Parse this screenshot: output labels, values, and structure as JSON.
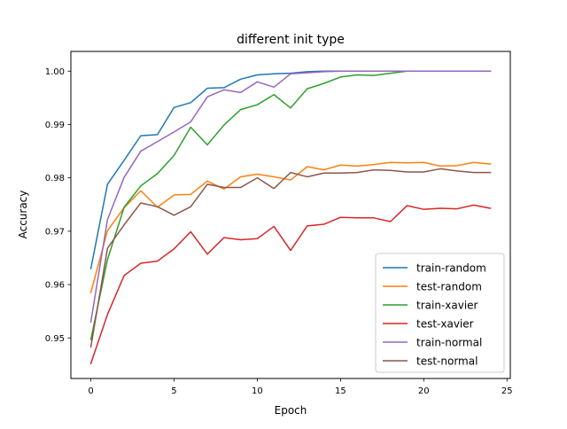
{
  "chart_data": {
    "type": "line",
    "title": "different init type",
    "xlabel": "Epoch",
    "ylabel": "Accuracy",
    "xlim": [
      -1.2,
      25.2
    ],
    "ylim": [
      0.9424,
      1.0037
    ],
    "xticks": [
      0,
      5,
      10,
      15,
      20,
      25
    ],
    "yticks": [
      0.95,
      0.96,
      0.97,
      0.98,
      0.99,
      1.0
    ],
    "ytick_labels": [
      "0.95",
      "0.96",
      "0.97",
      "0.98",
      "0.99",
      "1.00"
    ],
    "grid": false,
    "legend_position": "lower-right",
    "x": [
      0,
      1,
      2,
      3,
      4,
      5,
      6,
      7,
      8,
      9,
      10,
      11,
      12,
      13,
      14,
      15,
      16,
      17,
      18,
      19,
      20,
      21,
      22,
      23,
      24
    ],
    "series": [
      {
        "name": "train-random",
        "color": "#1f77b4",
        "values": [
          0.963,
          0.9788,
          0.9833,
          0.9879,
          0.9881,
          0.9932,
          0.9941,
          0.9968,
          0.9969,
          0.9985,
          0.9993,
          0.9995,
          0.9996,
          0.9999,
          1.0,
          1.0,
          1.0,
          1.0,
          1.0,
          1.0,
          1.0,
          1.0,
          1.0,
          1.0,
          1.0
        ]
      },
      {
        "name": "test-random",
        "color": "#ff7f0e",
        "values": [
          0.9585,
          0.9701,
          0.9744,
          0.9776,
          0.9745,
          0.9768,
          0.9769,
          0.9794,
          0.9779,
          0.9802,
          0.9807,
          0.9802,
          0.9796,
          0.9821,
          0.9815,
          0.9824,
          0.9822,
          0.9825,
          0.9829,
          0.9828,
          0.9829,
          0.9822,
          0.9823,
          0.9829,
          0.9826
        ]
      },
      {
        "name": "train-xavier",
        "color": "#2ca02c",
        "values": [
          0.9497,
          0.9647,
          0.9745,
          0.9785,
          0.9808,
          0.9842,
          0.9895,
          0.9862,
          0.9899,
          0.9928,
          0.9937,
          0.9956,
          0.9931,
          0.9967,
          0.9977,
          0.9989,
          0.9993,
          0.9992,
          0.9996,
          1.0,
          1.0,
          1.0,
          1.0,
          1.0,
          1.0
        ]
      },
      {
        "name": "test-xavier",
        "color": "#d62728",
        "values": [
          0.9452,
          0.9544,
          0.9617,
          0.964,
          0.9644,
          0.9667,
          0.9699,
          0.9657,
          0.9688,
          0.9684,
          0.9686,
          0.9709,
          0.9664,
          0.971,
          0.9713,
          0.9726,
          0.9725,
          0.9725,
          0.9718,
          0.9748,
          0.9741,
          0.9743,
          0.9742,
          0.9749,
          0.9743
        ]
      },
      {
        "name": "train-normal",
        "color": "#9467bd",
        "values": [
          0.953,
          0.9722,
          0.9801,
          0.985,
          0.9868,
          0.9886,
          0.9905,
          0.9952,
          0.9965,
          0.996,
          0.998,
          0.997,
          0.9995,
          0.9997,
          0.9999,
          1.0,
          1.0,
          1.0,
          1.0,
          1.0,
          1.0,
          1.0,
          1.0,
          1.0,
          1.0
        ]
      },
      {
        "name": "test-normal",
        "color": "#8c564b",
        "values": [
          0.9483,
          0.9668,
          0.9712,
          0.9753,
          0.9746,
          0.973,
          0.9746,
          0.9788,
          0.9782,
          0.9782,
          0.98,
          0.978,
          0.981,
          0.9802,
          0.9809,
          0.9809,
          0.981,
          0.9815,
          0.9814,
          0.9811,
          0.9811,
          0.9817,
          0.9813,
          0.981,
          0.981
        ]
      }
    ]
  }
}
